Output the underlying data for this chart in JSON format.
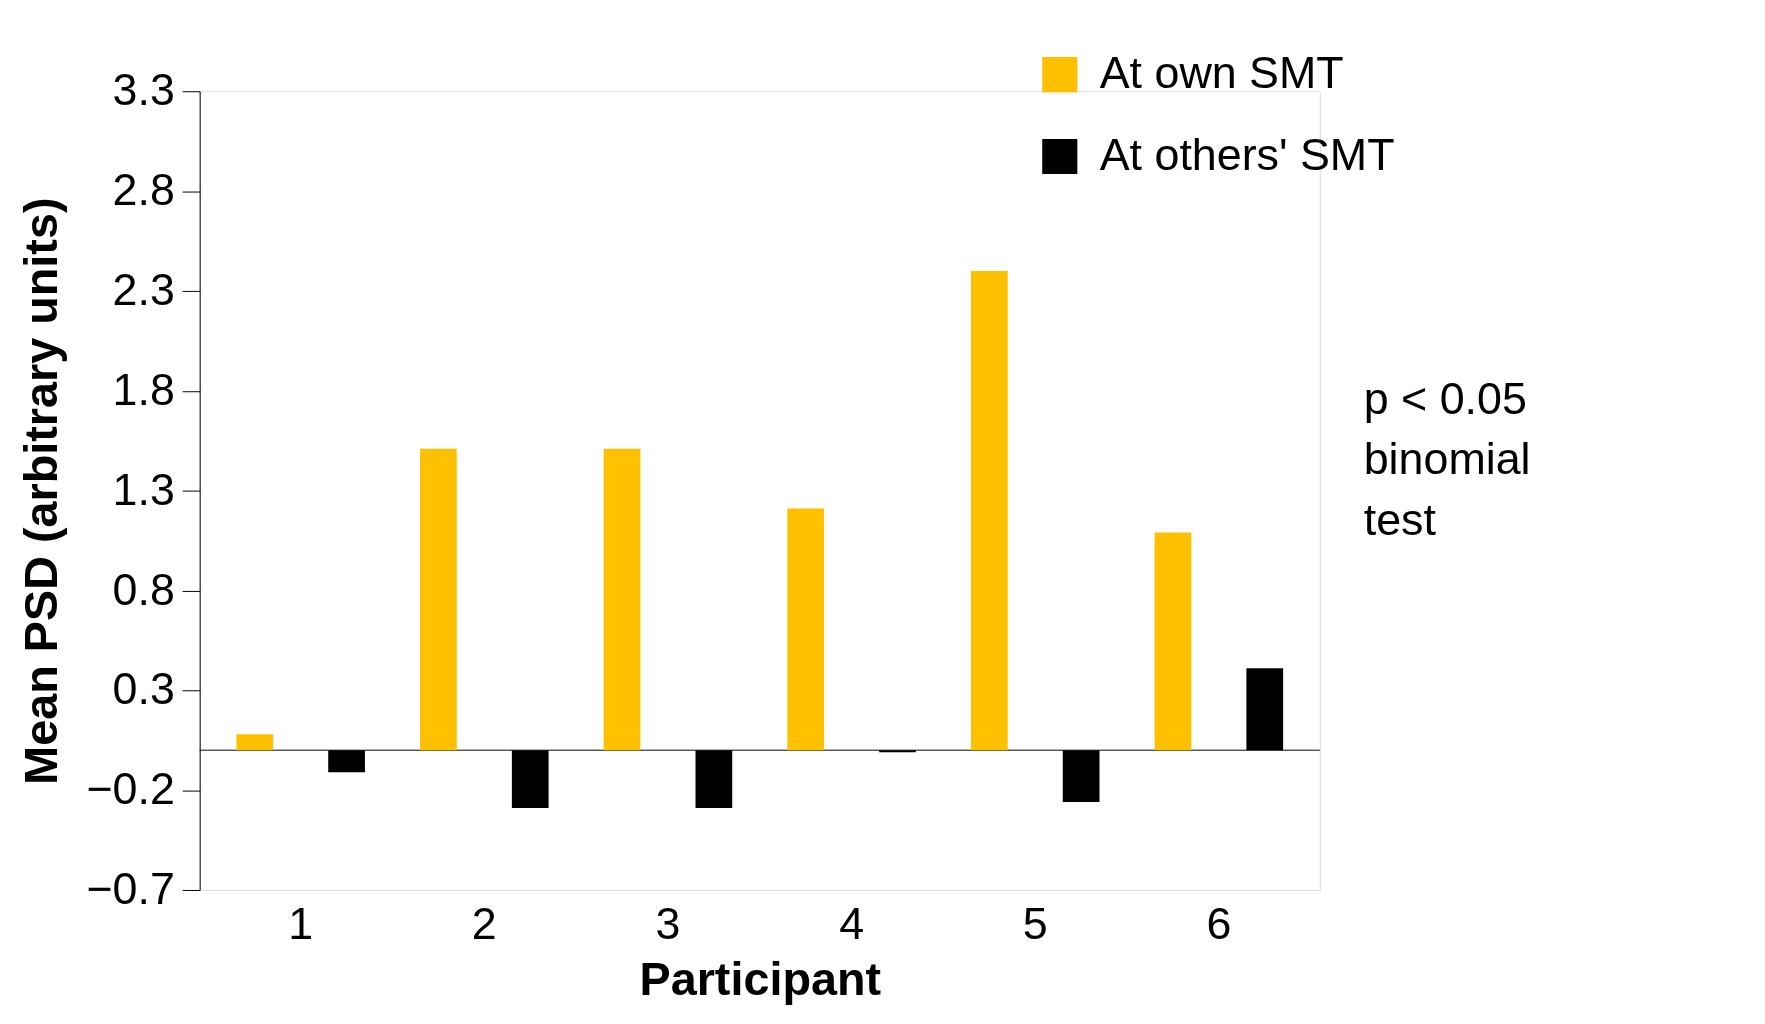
{
  "chart_data": {
    "type": "bar",
    "xlabel": "Participant",
    "ylabel": "Mean PSD (arbitrary units)",
    "categories": [
      "1",
      "2",
      "3",
      "4",
      "5",
      "6"
    ],
    "series": [
      {
        "name": "At own SMT",
        "color": "#ffc000",
        "values": [
          0.08,
          1.51,
          1.51,
          1.21,
          2.4,
          1.09
        ]
      },
      {
        "name": "At others' SMT",
        "color": "#000000",
        "values": [
          -0.11,
          -0.29,
          -0.29,
          -0.01,
          -0.26,
          0.41
        ]
      }
    ],
    "ylim": [
      -0.7,
      3.3
    ],
    "yticks": [
      -0.7,
      -0.2,
      0.3,
      0.8,
      1.3,
      1.8,
      2.3,
      2.8,
      3.3
    ],
    "grid": false,
    "legend": "top right",
    "annotations": [
      "p < 0.05\nbinomial\ntest"
    ]
  }
}
